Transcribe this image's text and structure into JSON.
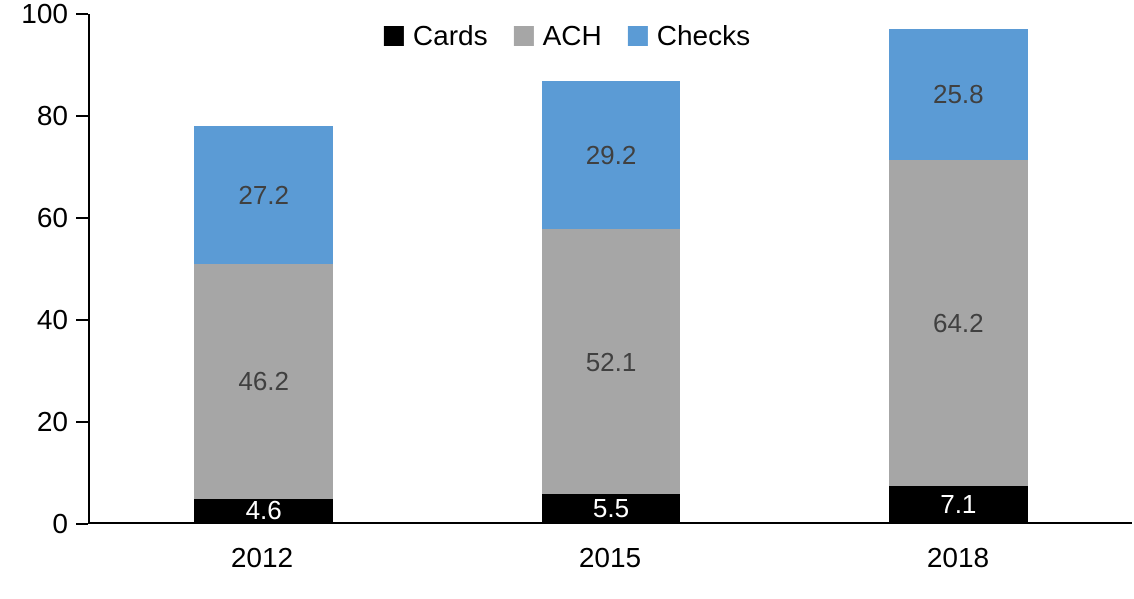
{
  "chart_data": {
    "type": "bar",
    "stacked": true,
    "title": "",
    "categories": [
      "2012",
      "2015",
      "2018"
    ],
    "series": [
      {
        "name": "Cards",
        "color": "#000000",
        "label_color": "#ffffff",
        "values": [
          4.6,
          5.5,
          7.1
        ]
      },
      {
        "name": "ACH",
        "color": "#a6a6a6",
        "label_color": "#404040",
        "values": [
          46.2,
          52.1,
          64.2
        ]
      },
      {
        "name": "Checks",
        "color": "#5b9bd5",
        "label_color": "#404040",
        "values": [
          27.2,
          29.2,
          25.8
        ]
      }
    ],
    "xlabel": "",
    "ylabel": "",
    "ylim": [
      0,
      100
    ],
    "yticks": [
      0,
      20,
      40,
      60,
      80,
      100
    ],
    "legend_position": "top-center",
    "grid": false,
    "data_labels_shown": true
  }
}
